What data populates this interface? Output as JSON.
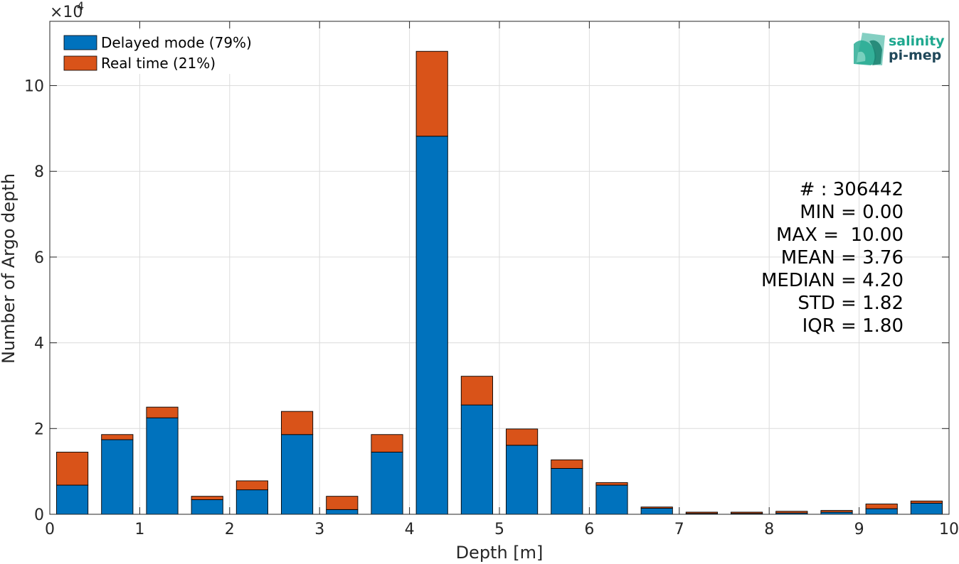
{
  "chart_data": {
    "type": "bar",
    "stacked": true,
    "xlabel": "Depth [m]",
    "ylabel": "Number of Argo depth",
    "y_exponent_label": "×10",
    "y_exponent_power": "4",
    "xlim": [
      0,
      10
    ],
    "ylim": [
      0,
      11.5
    ],
    "xticks": [
      "0",
      "1",
      "2",
      "3",
      "4",
      "5",
      "6",
      "7",
      "8",
      "9",
      "10"
    ],
    "yticks": [
      "0",
      "2",
      "4",
      "6",
      "8",
      "10"
    ],
    "grid": true,
    "legend_position": "top-left",
    "bin_centers": [
      0.25,
      0.75,
      1.25,
      1.75,
      2.25,
      2.75,
      3.25,
      3.75,
      4.25,
      4.75,
      5.25,
      5.75,
      6.25,
      6.75,
      7.25,
      7.75,
      8.25,
      8.75,
      9.25,
      9.75
    ],
    "bar_width": 0.35,
    "series": [
      {
        "name": "Delayed mode (79%)",
        "color": "#0072BD",
        "values": [
          0.68,
          1.74,
          2.25,
          0.34,
          0.57,
          1.86,
          0.11,
          1.45,
          8.82,
          2.55,
          1.61,
          1.07,
          0.68,
          0.14,
          0.02,
          0.02,
          0.03,
          0.05,
          0.13,
          0.26
        ]
      },
      {
        "name": "Real time (21%)",
        "color": "#D95319",
        "values": [
          0.77,
          0.12,
          0.25,
          0.08,
          0.21,
          0.54,
          0.31,
          0.41,
          1.98,
          0.67,
          0.38,
          0.2,
          0.06,
          0.03,
          0.03,
          0.03,
          0.04,
          0.04,
          0.11,
          0.05
        ]
      }
    ],
    "stats": [
      "# : 306442",
      "MIN = 0.00",
      "MAX =  10.00",
      "MEAN = 3.76",
      "MEDIAN = 4.20",
      "STD = 1.82",
      "IQR = 1.80"
    ]
  },
  "logo": {
    "line1": "salinity",
    "line2": "pi-mep",
    "color": "#1FA88F",
    "dark": "#20485A"
  }
}
